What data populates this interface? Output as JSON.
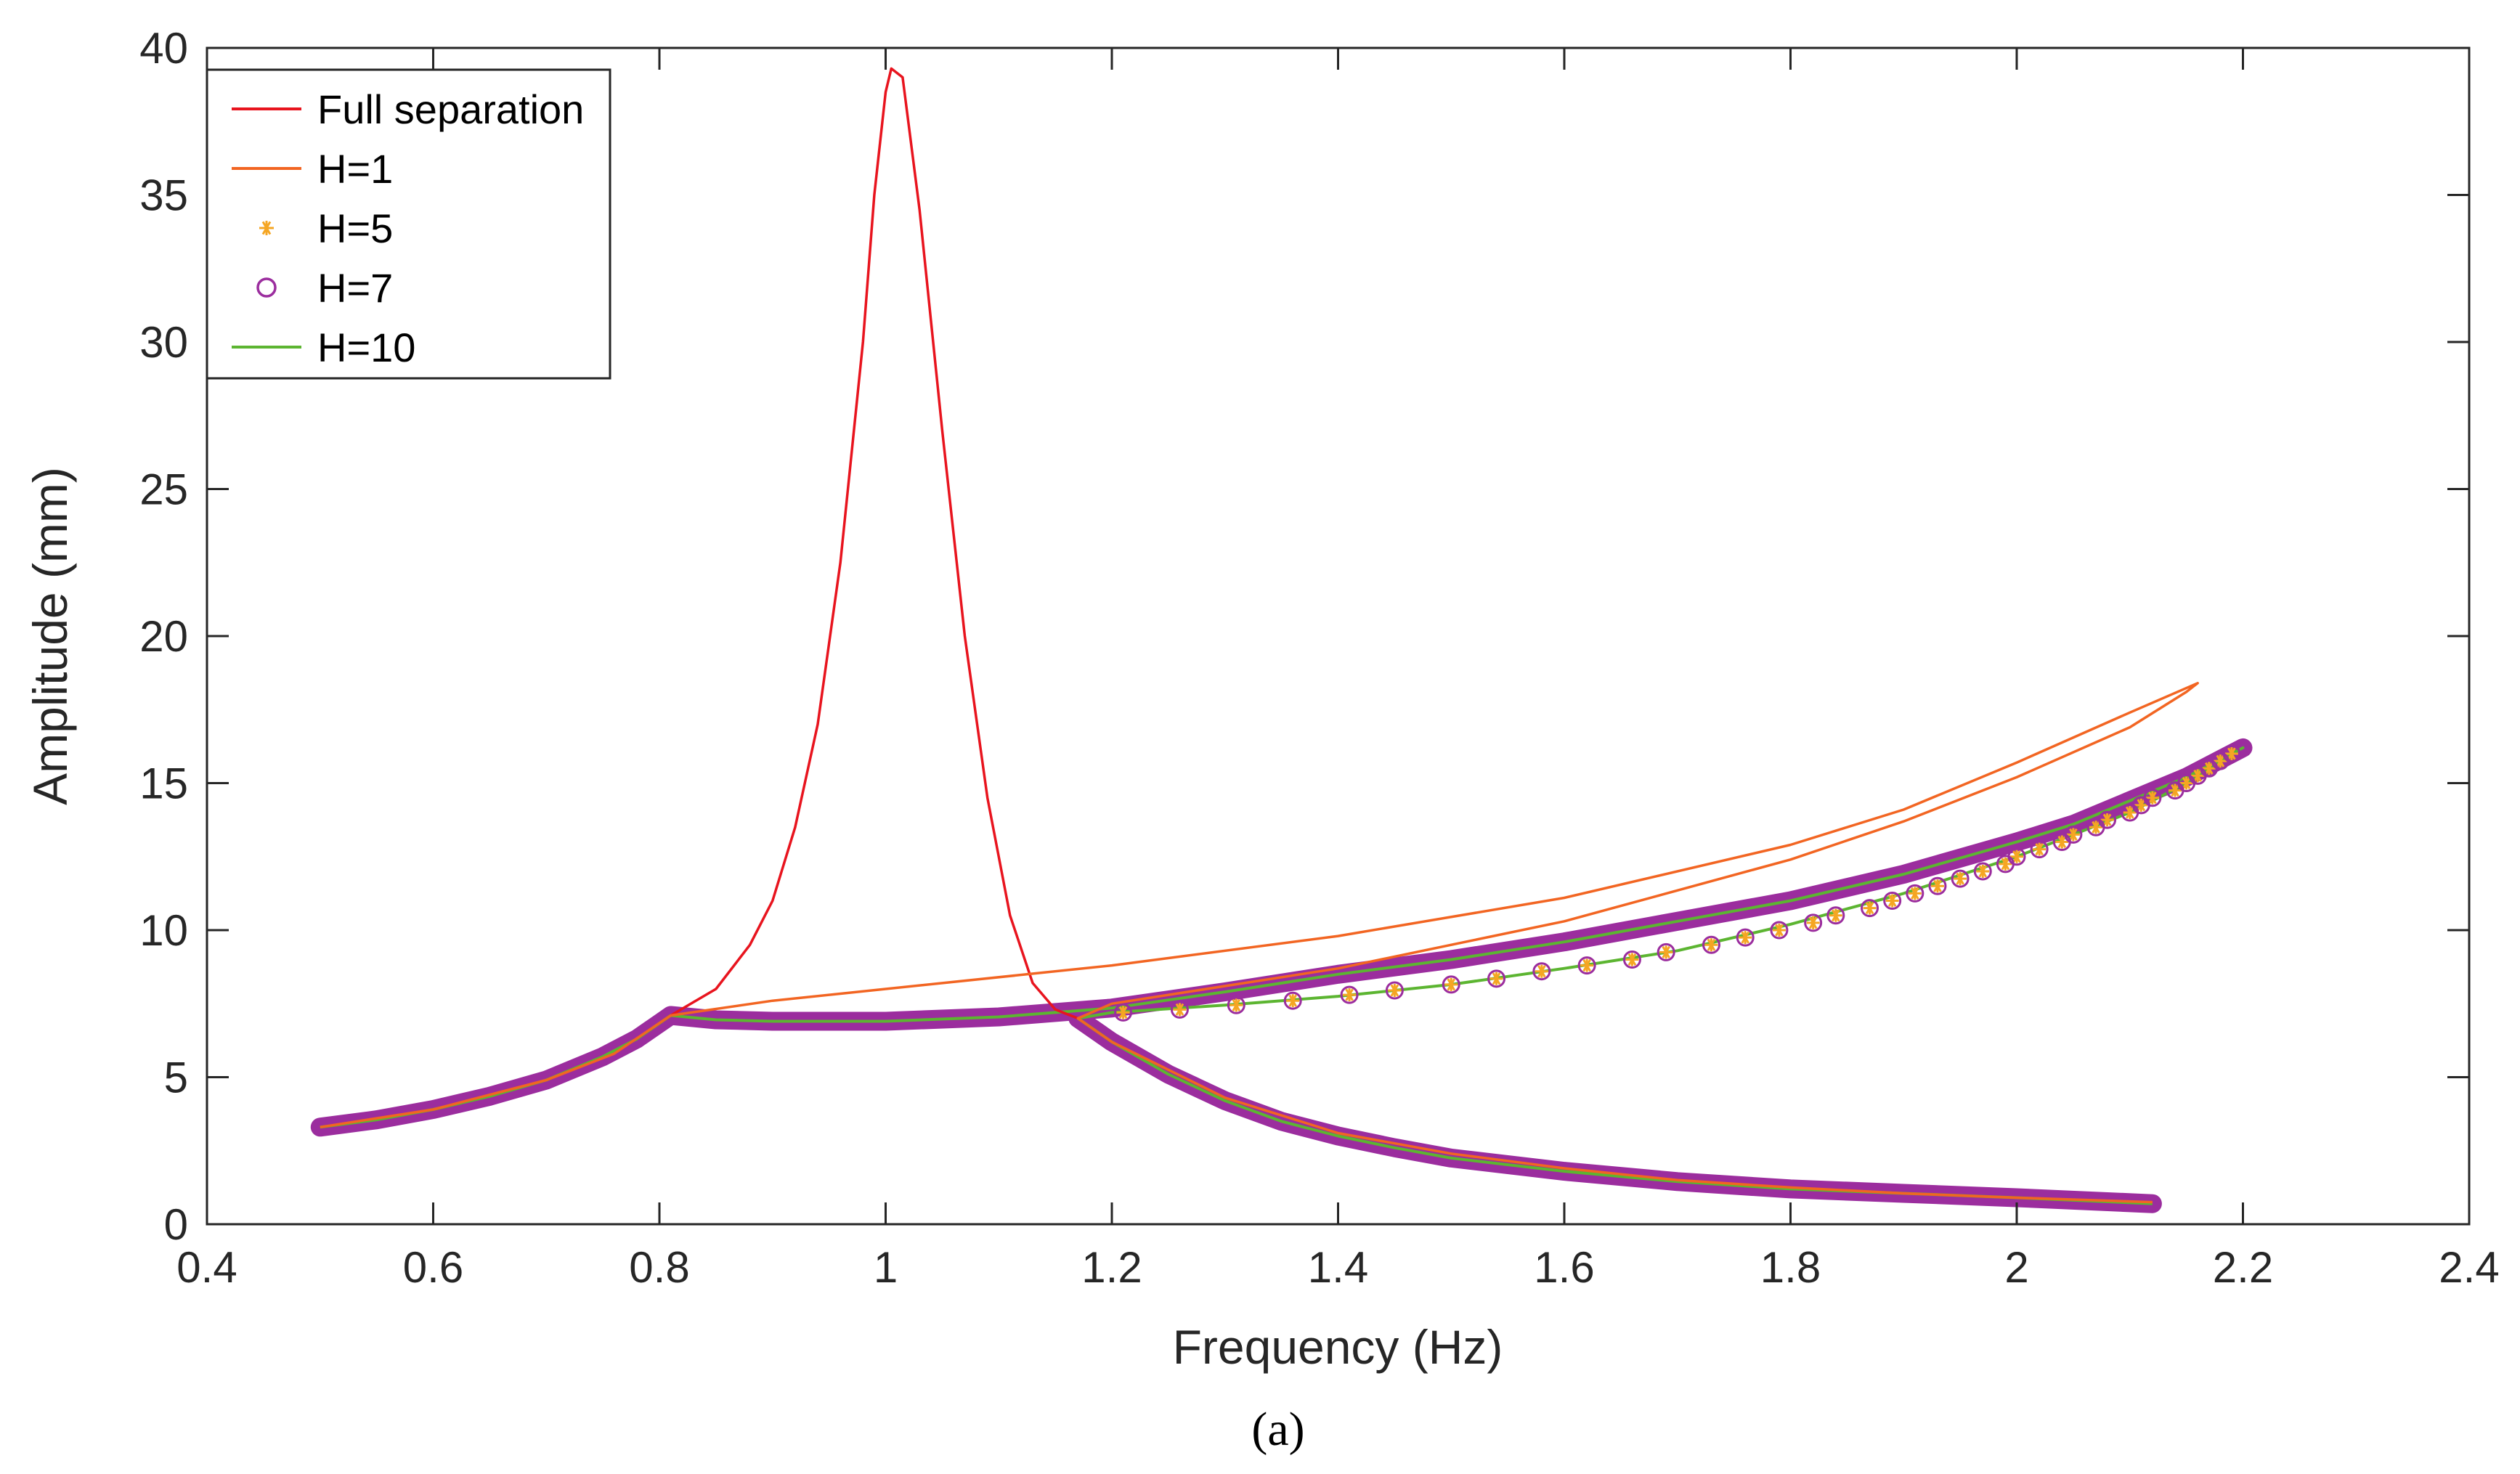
{
  "caption": "(a)",
  "chart_data": {
    "type": "line",
    "title": "",
    "xlabel": "Frequency (Hz)",
    "ylabel": "Amplitude (mm)",
    "xlim": [
      0.4,
      2.4
    ],
    "ylim": [
      0,
      40
    ],
    "xticks": [
      0.4,
      0.6,
      0.8,
      1,
      1.2,
      1.4,
      1.6,
      1.8,
      2,
      2.2,
      2.4
    ],
    "xtick_labels": [
      "0.4",
      "0.6",
      "0.8",
      "1",
      "1.2",
      "1.4",
      "1.6",
      "1.8",
      "2",
      "2.2",
      "2.4"
    ],
    "yticks": [
      0,
      5,
      10,
      15,
      20,
      25,
      30,
      35,
      40
    ],
    "ytick_labels": [
      "0",
      "5",
      "10",
      "15",
      "20",
      "25",
      "30",
      "35",
      "40"
    ],
    "grid": false,
    "legend_position": "top-left",
    "series": [
      {
        "name": "Full separation",
        "style": "line",
        "color": "#e8141e",
        "points": [
          [
            0.81,
            7.1
          ],
          [
            0.85,
            8.0
          ],
          [
            0.88,
            9.5
          ],
          [
            0.9,
            11.0
          ],
          [
            0.92,
            13.5
          ],
          [
            0.94,
            17.0
          ],
          [
            0.96,
            22.5
          ],
          [
            0.98,
            30.0
          ],
          [
            0.99,
            35.0
          ],
          [
            1.0,
            38.5
          ],
          [
            1.005,
            39.3
          ],
          [
            1.015,
            39.0
          ],
          [
            1.03,
            34.5
          ],
          [
            1.05,
            27.0
          ],
          [
            1.07,
            20.0
          ],
          [
            1.09,
            14.5
          ],
          [
            1.11,
            10.5
          ],
          [
            1.13,
            8.2
          ],
          [
            1.15,
            7.3
          ],
          [
            1.17,
            7.0
          ]
        ]
      },
      {
        "name": "H=1",
        "style": "line",
        "color": "#f26522",
        "points": [
          [
            0.5,
            3.3
          ],
          [
            0.6,
            3.9
          ],
          [
            0.7,
            4.9
          ],
          [
            0.76,
            5.8
          ],
          [
            0.81,
            7.1
          ],
          [
            0.9,
            7.6
          ],
          [
            1.0,
            8.0
          ],
          [
            1.2,
            8.8
          ],
          [
            1.4,
            9.8
          ],
          [
            1.6,
            11.1
          ],
          [
            1.8,
            12.9
          ],
          [
            1.9,
            14.1
          ],
          [
            2.0,
            15.7
          ],
          [
            2.1,
            17.4
          ],
          [
            2.16,
            18.4
          ],
          [
            2.15,
            18.1
          ],
          [
            2.1,
            16.9
          ],
          [
            2.0,
            15.2
          ],
          [
            1.9,
            13.7
          ],
          [
            1.8,
            12.4
          ],
          [
            1.6,
            10.3
          ],
          [
            1.4,
            8.7
          ],
          [
            1.2,
            7.5
          ],
          [
            1.17,
            7.0
          ],
          [
            1.2,
            6.2
          ],
          [
            1.3,
            4.3
          ],
          [
            1.4,
            3.1
          ],
          [
            1.5,
            2.4
          ],
          [
            1.6,
            1.9
          ],
          [
            1.7,
            1.5
          ],
          [
            1.8,
            1.25
          ],
          [
            1.9,
            1.05
          ],
          [
            2.0,
            0.9
          ],
          [
            2.12,
            0.75
          ]
        ]
      },
      {
        "name": "H=5",
        "style": "marker",
        "marker": "asterisk",
        "color": "#f5a623",
        "points": [
          [
            1.21,
            7.2
          ],
          [
            1.26,
            7.3
          ],
          [
            1.31,
            7.45
          ],
          [
            1.36,
            7.6
          ],
          [
            1.41,
            7.8
          ],
          [
            1.45,
            7.95
          ],
          [
            1.5,
            8.15
          ],
          [
            1.54,
            8.35
          ],
          [
            1.58,
            8.6
          ],
          [
            1.62,
            8.8
          ],
          [
            1.66,
            9.0
          ],
          [
            1.69,
            9.25
          ],
          [
            1.73,
            9.5
          ],
          [
            1.76,
            9.75
          ],
          [
            1.79,
            10.0
          ],
          [
            1.82,
            10.25
          ],
          [
            1.84,
            10.5
          ],
          [
            1.87,
            10.75
          ],
          [
            1.89,
            11.0
          ],
          [
            1.91,
            11.25
          ],
          [
            1.93,
            11.5
          ],
          [
            1.95,
            11.75
          ],
          [
            1.97,
            12.0
          ],
          [
            1.99,
            12.25
          ],
          [
            2.0,
            12.5
          ],
          [
            2.02,
            12.75
          ],
          [
            2.04,
            13.0
          ],
          [
            2.05,
            13.25
          ],
          [
            2.07,
            13.5
          ],
          [
            2.08,
            13.75
          ],
          [
            2.1,
            14.0
          ],
          [
            2.11,
            14.25
          ],
          [
            2.12,
            14.5
          ],
          [
            2.14,
            14.75
          ],
          [
            2.15,
            15.0
          ],
          [
            2.16,
            15.25
          ],
          [
            2.17,
            15.5
          ],
          [
            2.18,
            15.75
          ],
          [
            2.19,
            16.0
          ]
        ]
      },
      {
        "name": "H=7",
        "style": "marker",
        "marker": "circle",
        "color": "#9b2d9e",
        "points": [
          [
            1.21,
            7.2
          ],
          [
            1.26,
            7.3
          ],
          [
            1.31,
            7.45
          ],
          [
            1.36,
            7.6
          ],
          [
            1.41,
            7.8
          ],
          [
            1.45,
            7.95
          ],
          [
            1.5,
            8.15
          ],
          [
            1.54,
            8.35
          ],
          [
            1.58,
            8.6
          ],
          [
            1.62,
            8.8
          ],
          [
            1.66,
            9.0
          ],
          [
            1.69,
            9.25
          ],
          [
            1.73,
            9.5
          ],
          [
            1.76,
            9.75
          ],
          [
            1.79,
            10.0
          ],
          [
            1.82,
            10.25
          ],
          [
            1.84,
            10.5
          ],
          [
            1.87,
            10.75
          ],
          [
            1.89,
            11.0
          ],
          [
            1.91,
            11.25
          ],
          [
            1.93,
            11.5
          ],
          [
            1.95,
            11.75
          ],
          [
            1.97,
            12.0
          ],
          [
            1.99,
            12.25
          ],
          [
            2.0,
            12.5
          ],
          [
            2.02,
            12.75
          ],
          [
            2.04,
            13.0
          ],
          [
            2.05,
            13.25
          ],
          [
            2.07,
            13.5
          ],
          [
            2.08,
            13.75
          ],
          [
            2.1,
            14.0
          ],
          [
            2.11,
            14.25
          ],
          [
            2.12,
            14.5
          ],
          [
            2.14,
            14.75
          ],
          [
            2.15,
            15.0
          ],
          [
            2.16,
            15.25
          ],
          [
            2.17,
            15.5
          ],
          [
            2.18,
            15.75
          ],
          [
            2.19,
            16.0
          ]
        ],
        "dense_branches": [
          [
            [
              0.5,
              3.3
            ],
            [
              0.55,
              3.55
            ],
            [
              0.6,
              3.9
            ],
            [
              0.65,
              4.35
            ],
            [
              0.7,
              4.9
            ],
            [
              0.75,
              5.7
            ],
            [
              0.78,
              6.3
            ],
            [
              0.81,
              7.1
            ],
            [
              0.85,
              6.95
            ],
            [
              0.9,
              6.9
            ],
            [
              0.95,
              6.9
            ],
            [
              1.0,
              6.9
            ],
            [
              1.1,
              7.05
            ],
            [
              1.2,
              7.35
            ],
            [
              1.3,
              7.9
            ],
            [
              1.4,
              8.5
            ],
            [
              1.5,
              9.0
            ],
            [
              1.6,
              9.6
            ],
            [
              1.7,
              10.3
            ],
            [
              1.8,
              11.0
            ],
            [
              1.9,
              11.9
            ],
            [
              2.0,
              13.0
            ],
            [
              2.05,
              13.6
            ],
            [
              2.1,
              14.4
            ],
            [
              2.15,
              15.2
            ],
            [
              2.2,
              16.2
            ]
          ],
          [
            [
              1.17,
              7.0
            ],
            [
              1.2,
              6.2
            ],
            [
              1.25,
              5.1
            ],
            [
              1.3,
              4.2
            ],
            [
              1.35,
              3.5
            ],
            [
              1.4,
              3.0
            ],
            [
              1.45,
              2.6
            ],
            [
              1.5,
              2.25
            ],
            [
              1.6,
              1.8
            ],
            [
              1.7,
              1.45
            ],
            [
              1.8,
              1.2
            ],
            [
              1.9,
              1.05
            ],
            [
              2.0,
              0.9
            ],
            [
              2.12,
              0.7
            ]
          ]
        ]
      },
      {
        "name": "H=10",
        "style": "line",
        "color": "#5cb531",
        "points": [
          [
            0.5,
            3.3
          ],
          [
            0.55,
            3.55
          ],
          [
            0.6,
            3.9
          ],
          [
            0.65,
            4.35
          ],
          [
            0.7,
            4.9
          ],
          [
            0.75,
            5.7
          ],
          [
            0.78,
            6.3
          ],
          [
            0.81,
            7.1
          ],
          [
            0.85,
            6.95
          ],
          [
            0.9,
            6.9
          ],
          [
            0.95,
            6.9
          ],
          [
            1.0,
            6.9
          ],
          [
            1.1,
            7.05
          ],
          [
            1.2,
            7.35
          ],
          [
            1.3,
            7.9
          ],
          [
            1.4,
            8.5
          ],
          [
            1.5,
            9.0
          ],
          [
            1.6,
            9.6
          ],
          [
            1.7,
            10.3
          ],
          [
            1.8,
            11.0
          ],
          [
            1.9,
            11.9
          ],
          [
            2.0,
            13.0
          ],
          [
            2.05,
            13.6
          ],
          [
            2.1,
            14.4
          ],
          [
            2.15,
            15.2
          ],
          [
            2.2,
            16.2
          ],
          [
            2.19,
            16.0
          ],
          [
            2.15,
            15.0
          ],
          [
            2.1,
            14.0
          ],
          [
            2.0,
            12.5
          ],
          [
            1.9,
            11.25
          ],
          [
            1.8,
            10.2
          ],
          [
            1.7,
            9.3
          ],
          [
            1.6,
            8.7
          ],
          [
            1.5,
            8.15
          ],
          [
            1.4,
            7.75
          ],
          [
            1.3,
            7.45
          ],
          [
            1.2,
            7.2
          ],
          [
            1.17,
            7.0
          ],
          [
            1.2,
            6.2
          ],
          [
            1.25,
            5.1
          ],
          [
            1.3,
            4.2
          ],
          [
            1.35,
            3.5
          ],
          [
            1.4,
            3.0
          ],
          [
            1.45,
            2.6
          ],
          [
            1.5,
            2.25
          ],
          [
            1.6,
            1.8
          ],
          [
            1.7,
            1.45
          ],
          [
            1.8,
            1.2
          ],
          [
            1.9,
            1.05
          ],
          [
            2.0,
            0.9
          ],
          [
            2.12,
            0.7
          ]
        ]
      }
    ]
  }
}
